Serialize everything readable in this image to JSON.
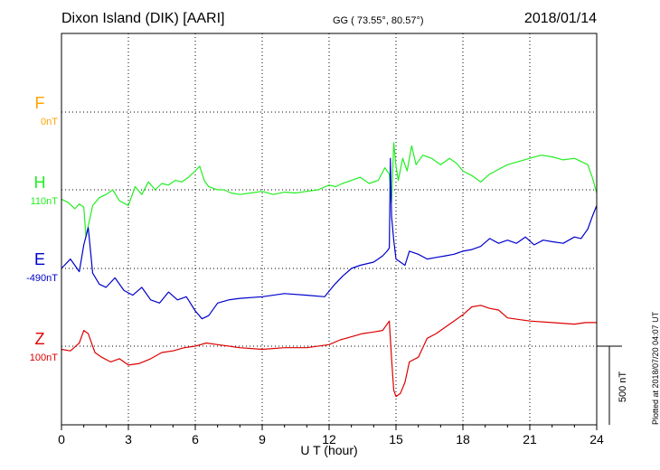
{
  "header": {
    "title": "Dixon Island (DIK)  [AARI]",
    "coords": "GG ( 73.55°,  80.57°)",
    "date": "2018/01/14"
  },
  "footer_note": "Plotted at 2018/07/20 04:07 UT",
  "colors": {
    "F": "#ffa500",
    "H": "#22ee22",
    "E": "#0000cc",
    "Z": "#dd0000"
  },
  "chart_data": {
    "type": "line",
    "xlabel": "U T (hour)",
    "xlim": [
      0,
      24
    ],
    "x_ticks": [
      "0",
      "3",
      "6",
      "9",
      "12",
      "15",
      "18",
      "21",
      "24"
    ],
    "scale_bar_label": "500 nT",
    "scale_nT": 500,
    "series": [
      {
        "name": "F",
        "baseline": "0nT",
        "values": []
      },
      {
        "name": "H",
        "baseline": "110nT",
        "x": [
          0,
          0.3,
          0.6,
          0.8,
          1.0,
          1.1,
          1.2,
          1.4,
          1.7,
          2.0,
          2.3,
          2.6,
          3.0,
          3.3,
          3.6,
          3.9,
          4.2,
          4.5,
          4.8,
          5.1,
          5.4,
          5.7,
          6.0,
          6.2,
          6.4,
          6.6,
          6.8,
          7.0,
          7.3,
          7.6,
          8.0,
          8.5,
          9.0,
          9.5,
          10.0,
          10.5,
          11.0,
          11.5,
          12.0,
          12.3,
          12.6,
          13.0,
          13.4,
          13.8,
          14.2,
          14.5,
          14.7,
          14.8,
          14.9,
          15.0,
          15.1,
          15.3,
          15.5,
          15.7,
          15.9,
          16.2,
          16.6,
          17.0,
          17.4,
          17.7,
          18.0,
          18.4,
          18.8,
          19.2,
          19.6,
          20.0,
          20.5,
          21.0,
          21.5,
          22.0,
          22.5,
          23.0,
          23.3,
          23.6,
          23.8,
          24.0
        ],
        "values": [
          -60,
          -80,
          -120,
          -90,
          -110,
          -300,
          -230,
          -100,
          -50,
          -30,
          0,
          -70,
          -100,
          20,
          -30,
          50,
          0,
          40,
          30,
          60,
          50,
          80,
          120,
          150,
          60,
          20,
          10,
          0,
          0,
          -20,
          -30,
          -20,
          -10,
          -30,
          -15,
          -20,
          -10,
          0,
          30,
          20,
          40,
          60,
          80,
          40,
          60,
          140,
          100,
          -80,
          300,
          150,
          60,
          200,
          120,
          280,
          160,
          220,
          200,
          160,
          200,
          170,
          120,
          90,
          50,
          100,
          130,
          160,
          180,
          200,
          220,
          210,
          190,
          200,
          180,
          160,
          80,
          -20
        ]
      },
      {
        "name": "E",
        "baseline": "-490nT",
        "x": [
          0,
          0.4,
          0.8,
          1.0,
          1.2,
          1.4,
          1.7,
          2.0,
          2.4,
          2.8,
          3.2,
          3.6,
          4.0,
          4.4,
          4.8,
          5.2,
          5.6,
          6.0,
          6.3,
          6.6,
          7.0,
          7.5,
          8.0,
          9.0,
          10.0,
          11.0,
          11.8,
          12.2,
          12.6,
          13.0,
          13.4,
          14.0,
          14.4,
          14.6,
          14.7,
          14.75,
          14.8,
          14.9,
          15.0,
          15.2,
          15.4,
          15.6,
          16.0,
          16.4,
          16.8,
          17.2,
          17.6,
          18.0,
          18.4,
          18.8,
          19.2,
          19.6,
          20.0,
          20.4,
          20.8,
          21.2,
          21.6,
          22.0,
          22.5,
          23.0,
          23.3,
          23.6,
          23.8,
          24.0
        ],
        "values": [
          0,
          60,
          -20,
          150,
          260,
          -30,
          -100,
          -120,
          -60,
          -140,
          -170,
          -120,
          -200,
          -220,
          -150,
          -200,
          -180,
          -270,
          -320,
          -300,
          -220,
          -200,
          -190,
          -180,
          -160,
          -170,
          -180,
          -110,
          -50,
          0,
          20,
          40,
          80,
          110,
          130,
          700,
          330,
          180,
          60,
          40,
          20,
          110,
          90,
          60,
          70,
          80,
          90,
          110,
          120,
          140,
          190,
          160,
          180,
          160,
          200,
          150,
          180,
          170,
          160,
          200,
          190,
          250,
          330,
          400
        ]
      },
      {
        "name": "Z",
        "baseline": "100nT",
        "x": [
          0,
          0.4,
          0.8,
          1.0,
          1.2,
          1.5,
          1.8,
          2.2,
          2.6,
          3.0,
          3.5,
          4.0,
          4.5,
          5.0,
          5.5,
          6.0,
          6.5,
          7.0,
          8.0,
          9.0,
          10.0,
          11.0,
          12.0,
          12.5,
          13.0,
          13.5,
          14.0,
          14.4,
          14.7,
          14.8,
          14.9,
          15.0,
          15.2,
          15.4,
          15.6,
          16.0,
          16.4,
          16.8,
          17.2,
          17.6,
          18.0,
          18.4,
          18.8,
          19.2,
          19.6,
          20.0,
          21.0,
          22.0,
          23.0,
          23.5,
          24.0
        ],
        "values": [
          -20,
          -30,
          20,
          100,
          80,
          -40,
          -70,
          -100,
          -80,
          -120,
          -110,
          -80,
          -40,
          -30,
          -10,
          0,
          20,
          10,
          -10,
          -20,
          -10,
          -10,
          10,
          40,
          60,
          80,
          90,
          100,
          160,
          -80,
          -280,
          -320,
          -300,
          -230,
          -100,
          -70,
          50,
          80,
          120,
          160,
          200,
          250,
          260,
          240,
          230,
          180,
          160,
          150,
          140,
          150,
          150
        ]
      }
    ]
  }
}
